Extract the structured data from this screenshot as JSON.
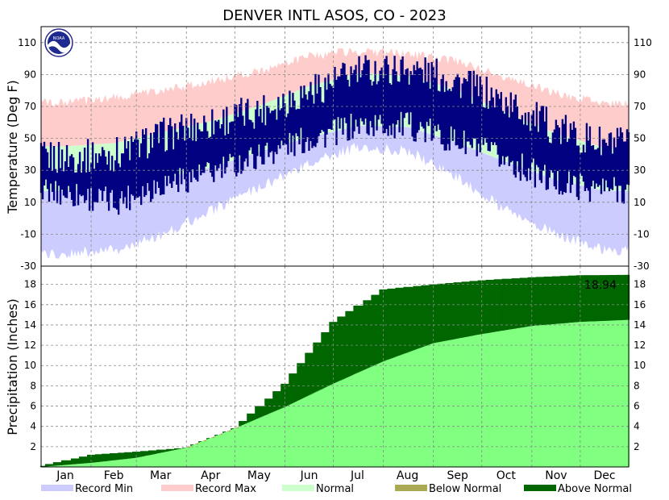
{
  "chart_data": [
    {
      "panel": "temperature",
      "type": "area",
      "title": "DENVER INTL  ASOS, CO - 2023",
      "ylabel": "Temperature (Deg F)",
      "ylim": [
        -30,
        120
      ],
      "yticks": [
        -30,
        -10,
        10,
        30,
        50,
        70,
        90,
        110
      ],
      "grid": true,
      "colors": {
        "record_max": "#ffcccc",
        "normal": "#ccffcc",
        "record_min": "#ccccff",
        "observed": "#000080"
      },
      "series": [
        {
          "name": "Record Max",
          "x": [
            "Jan",
            "Feb",
            "Mar",
            "Apr",
            "May",
            "Jun",
            "Jul",
            "Aug",
            "Sep",
            "Oct",
            "Nov",
            "Dec"
          ],
          "values": [
            72,
            76,
            80,
            86,
            92,
            102,
            105,
            103,
            98,
            88,
            78,
            72
          ]
        },
        {
          "name": "Normal High",
          "x": [
            "Jan",
            "Feb",
            "Mar",
            "Apr",
            "May",
            "Jun",
            "Jul",
            "Aug",
            "Sep",
            "Oct",
            "Nov",
            "Dec"
          ],
          "values": [
            45,
            47,
            54,
            61,
            71,
            83,
            91,
            89,
            80,
            66,
            53,
            44
          ]
        },
        {
          "name": "Normal Low",
          "x": [
            "Jan",
            "Feb",
            "Mar",
            "Apr",
            "May",
            "Jun",
            "Jul",
            "Aug",
            "Sep",
            "Oct",
            "Nov",
            "Dec"
          ],
          "values": [
            17,
            19,
            25,
            32,
            42,
            51,
            58,
            57,
            47,
            35,
            24,
            17
          ]
        },
        {
          "name": "Record Min",
          "x": [
            "Jan",
            "Feb",
            "Mar",
            "Apr",
            "May",
            "Jun",
            "Jul",
            "Aug",
            "Sep",
            "Oct",
            "Nov",
            "Dec"
          ],
          "values": [
            -22,
            -20,
            -10,
            5,
            20,
            35,
            45,
            42,
            25,
            5,
            -10,
            -20
          ]
        },
        {
          "name": "Observed High",
          "x": [
            "Jan",
            "Feb",
            "Mar",
            "Apr",
            "May",
            "Jun",
            "Jul",
            "Aug",
            "Sep",
            "Oct",
            "Nov",
            "Dec"
          ],
          "values": [
            38,
            40,
            52,
            60,
            68,
            80,
            92,
            94,
            86,
            72,
            56,
            46
          ]
        },
        {
          "name": "Observed Low",
          "x": [
            "Jan",
            "Feb",
            "Mar",
            "Apr",
            "May",
            "Jun",
            "Jul",
            "Aug",
            "Sep",
            "Oct",
            "Nov",
            "Dec"
          ],
          "values": [
            16,
            10,
            22,
            28,
            40,
            50,
            58,
            58,
            48,
            36,
            22,
            18
          ]
        }
      ]
    },
    {
      "panel": "precipitation",
      "type": "area",
      "ylabel": "Precipitation (Inches)",
      "ylim": [
        0,
        19.8
      ],
      "yticks": [
        2,
        4,
        6,
        8,
        10,
        12,
        14,
        16,
        18
      ],
      "xlabels": [
        "Jan",
        "Feb",
        "Mar",
        "Apr",
        "May",
        "Jun",
        "Jul",
        "Aug",
        "Sep",
        "Oct",
        "Nov",
        "Dec"
      ],
      "grid": true,
      "annotation": "18.94",
      "colors": {
        "normal": "#80ff80",
        "below_normal": "#aaaa55",
        "above_normal": "#006600"
      },
      "series": [
        {
          "name": "Observed Accumulation",
          "x": [
            "Jan 1",
            "Feb 1",
            "Mar 1",
            "Apr 1",
            "May 1",
            "Jun 1",
            "Jul 1",
            "Aug 1",
            "Sep 1",
            "Oct 1",
            "Nov 1",
            "Dec 1",
            "Dec 31"
          ],
          "values": [
            0.1,
            1.2,
            1.5,
            1.9,
            3.8,
            8.2,
            14.3,
            17.5,
            18.0,
            18.4,
            18.7,
            18.9,
            18.94
          ]
        },
        {
          "name": "Normal Accumulation",
          "x": [
            "Jan 1",
            "Feb 1",
            "Mar 1",
            "Apr 1",
            "May 1",
            "Jun 1",
            "Jul 1",
            "Aug 1",
            "Sep 1",
            "Oct 1",
            "Nov 1",
            "Dec 1",
            "Dec 31"
          ],
          "values": [
            0.0,
            0.4,
            0.9,
            1.9,
            3.8,
            5.9,
            8.2,
            10.4,
            12.2,
            13.1,
            13.9,
            14.3,
            14.5
          ]
        }
      ]
    }
  ],
  "legend": [
    {
      "label": "Record Min",
      "color": "#ccccff"
    },
    {
      "label": "Record Max",
      "color": "#ffcccc"
    },
    {
      "label": "Normal",
      "color": "#ccffcc"
    },
    {
      "label": "Below Normal",
      "color": "#aaaa55"
    },
    {
      "label": "Above Normal",
      "color": "#006600"
    }
  ],
  "logo": {
    "text": "NOAA",
    "icon": "noaa-logo-icon"
  }
}
